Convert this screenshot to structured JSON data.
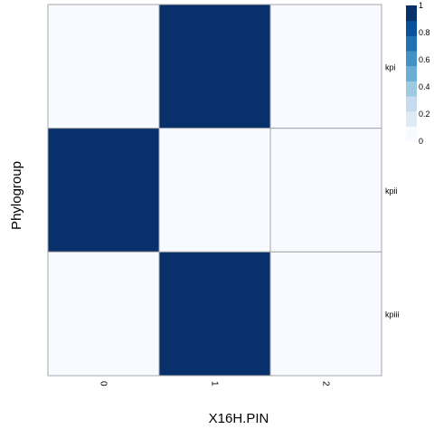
{
  "chart_data": {
    "type": "heatmap",
    "title": "",
    "xlabel": "X16H.PIN",
    "ylabel": "Phylogroup",
    "x_categories": [
      "0",
      "1",
      "2"
    ],
    "y_categories": [
      "kpi",
      "kpii",
      "kpiii"
    ],
    "values": [
      [
        0,
        1,
        0
      ],
      [
        1,
        0,
        0
      ],
      [
        0,
        1,
        0
      ]
    ],
    "color_scale": {
      "min": 0,
      "max": 1,
      "ticks": [
        "0",
        "0.2",
        "0.4",
        "0.6",
        "0.8",
        "1"
      ],
      "colors": [
        "#f7fbff",
        "#deebf7",
        "#c6dbef",
        "#9ecae1",
        "#6baed6",
        "#4292c6",
        "#2171b5",
        "#08519c",
        "#08306b"
      ]
    },
    "grid": true,
    "legend_placement": "right"
  }
}
